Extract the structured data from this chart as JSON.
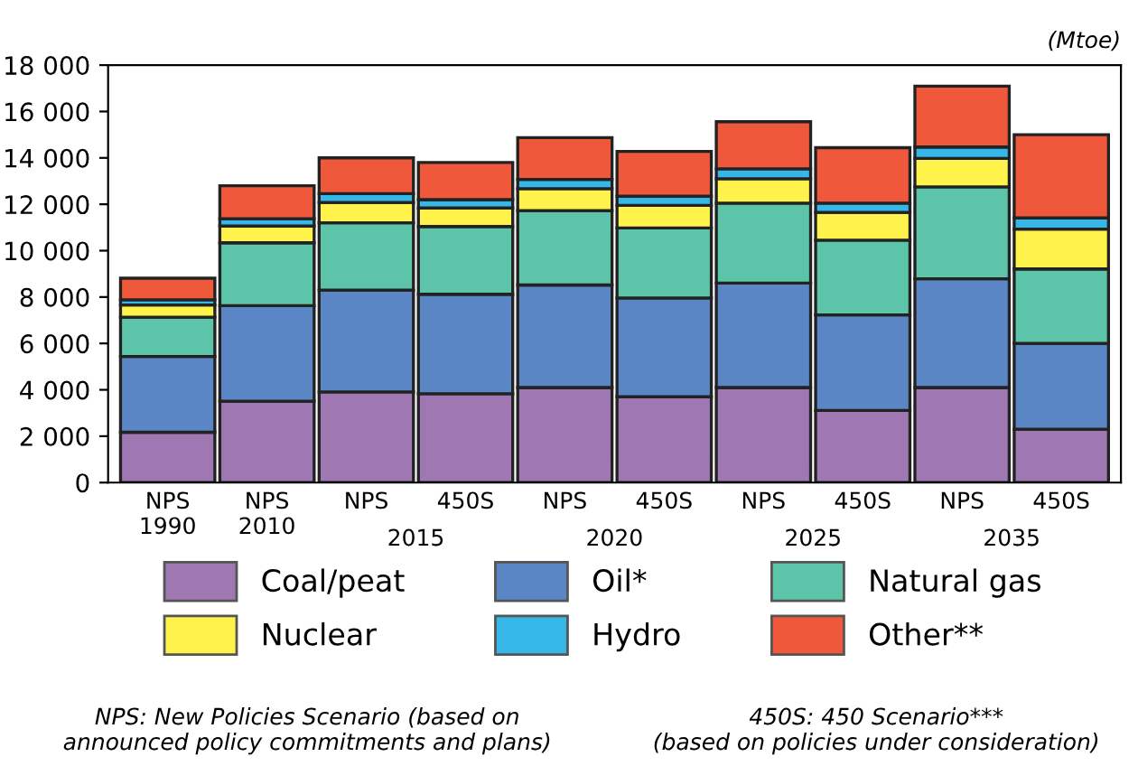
{
  "chart_data": {
    "type": "bar",
    "stacked": true,
    "ylabel": "(Mtoe)",
    "categories": [
      "NPS\n1990",
      "NPS\n2010",
      "NPS",
      "450S",
      "NPS",
      "450S",
      "NPS",
      "450S",
      "NPS",
      "450S"
    ],
    "series": [
      {
        "name": "Coal/peat",
        "color": "#9e77b3",
        "values": [
          2170,
          3510,
          3910,
          3830,
          4100,
          3700,
          4100,
          3110,
          4100,
          2300
        ]
      },
      {
        "name": "Oil*",
        "color": "#5b86c5",
        "values": [
          3270,
          4120,
          4390,
          4290,
          4420,
          4260,
          4500,
          4120,
          4690,
          3700
        ]
      },
      {
        "name": "Natural gas",
        "color": "#5cc4a8",
        "values": [
          1690,
          2710,
          2900,
          2920,
          3210,
          3020,
          3450,
          3220,
          3960,
          3210
        ]
      },
      {
        "name": "Nuclear",
        "color": "#fff24a",
        "values": [
          530,
          720,
          880,
          800,
          940,
          970,
          1050,
          1200,
          1230,
          1720
        ]
      },
      {
        "name": "Hydro",
        "color": "#35b8e8",
        "values": [
          220,
          320,
          380,
          360,
          400,
          400,
          430,
          400,
          490,
          480
        ]
      },
      {
        "name": "Other**",
        "color": "#f0583c",
        "values": [
          930,
          1420,
          1540,
          1600,
          1800,
          1930,
          2030,
          2390,
          2620,
          3590
        ]
      }
    ],
    "ylim": [
      0,
      18000
    ],
    "yticks": [
      {
        "value": 0,
        "label": "0"
      },
      {
        "value": 2000,
        "label": "2 000"
      },
      {
        "value": 4000,
        "label": "4 000"
      },
      {
        "value": 6000,
        "label": "6 000"
      },
      {
        "value": 8000,
        "label": "8 000"
      },
      {
        "value": 10000,
        "label": "10 000"
      },
      {
        "value": 12000,
        "label": "12 000"
      },
      {
        "value": 14000,
        "label": "14 000"
      },
      {
        "value": 16000,
        "label": "16 000"
      },
      {
        "value": 18000,
        "label": "18 000"
      }
    ],
    "grid": false,
    "legend": "bottom",
    "annotations": [
      "2015",
      "2020",
      "2025",
      "2035",
      "NPS: New Policies Scenario (based on\nannounced policy commitments and plans)",
      "450S: 450 Scenario***\n(based on policies under consideration)"
    ]
  }
}
